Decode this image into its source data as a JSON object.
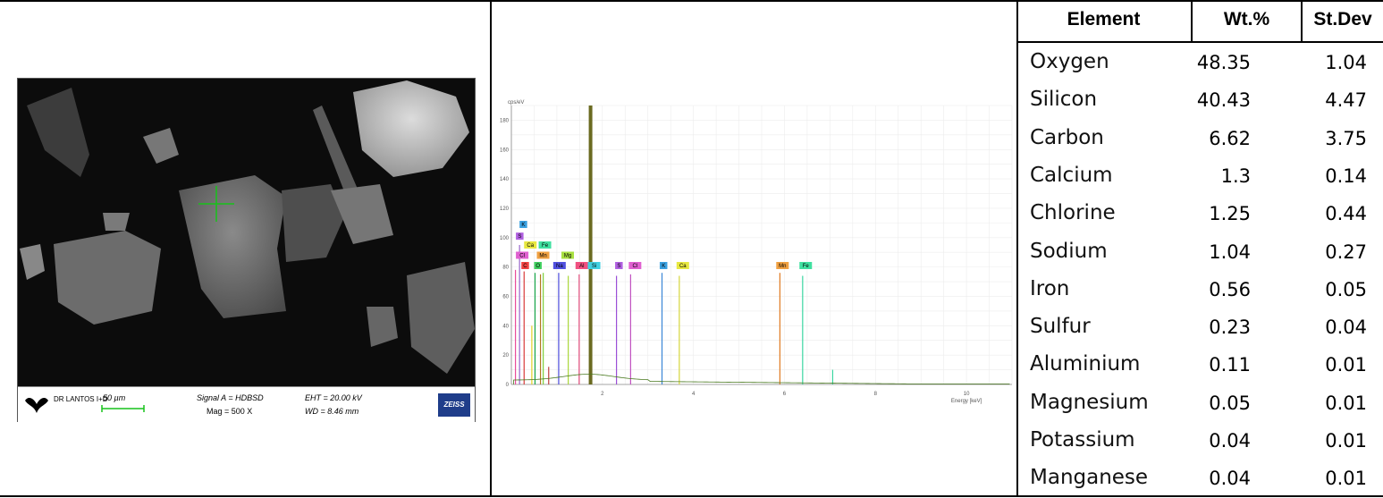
{
  "sem": {
    "logo": "DR LANTOS I+D",
    "scale": "50 µm",
    "signal": "Signal A = HDBSD",
    "mag": "Mag =   500 X",
    "eht": "EHT = 20.00 kV",
    "wd": "WD = 8.46 mm",
    "brand": "ZEISS"
  },
  "chart_data": {
    "type": "line",
    "ylabel": "cps/eV",
    "xlabel": "Energy [keV]",
    "xlim": [
      0,
      11
    ],
    "ylim": [
      0,
      190
    ],
    "yticks": [
      0,
      20,
      40,
      60,
      80,
      100,
      120,
      140,
      160,
      180
    ],
    "xticks": [
      2,
      4,
      6,
      8,
      10
    ],
    "grid": true,
    "peaks": [
      {
        "x": 0.09,
        "y": 78,
        "color": "#e94c9b"
      },
      {
        "x": 0.18,
        "y": 95,
        "color": "#9966cc"
      },
      {
        "x": 0.28,
        "y": 77,
        "color": "#d93a3a"
      },
      {
        "x": 0.45,
        "y": 40,
        "color": "#e0d020"
      },
      {
        "x": 0.52,
        "y": 76,
        "color": "#19a84b"
      },
      {
        "x": 0.64,
        "y": 75,
        "color": "#b07a1e"
      },
      {
        "x": 0.7,
        "y": 76,
        "color": "#7ccf3a"
      },
      {
        "x": 0.82,
        "y": 12,
        "color": "#c04040"
      },
      {
        "x": 1.04,
        "y": 76,
        "color": "#4a4adb"
      },
      {
        "x": 1.25,
        "y": 74,
        "color": "#a9d63a"
      },
      {
        "x": 1.49,
        "y": 75,
        "color": "#e04a7a"
      },
      {
        "x": 1.74,
        "y": 190,
        "color": "#6a6a20"
      },
      {
        "x": 2.31,
        "y": 74,
        "color": "#9b4fd6"
      },
      {
        "x": 2.62,
        "y": 75,
        "color": "#c050c0"
      },
      {
        "x": 3.31,
        "y": 76,
        "color": "#3a86d6"
      },
      {
        "x": 3.69,
        "y": 74,
        "color": "#d6d63a"
      },
      {
        "x": 5.9,
        "y": 76,
        "color": "#e07a20"
      },
      {
        "x": 6.4,
        "y": 74,
        "color": "#3ad6a0"
      },
      {
        "x": 7.06,
        "y": 10,
        "color": "#3ad6a0"
      }
    ],
    "labels": [
      {
        "text": "K",
        "x": 0.18,
        "y": 109,
        "color": "#3aa0e0"
      },
      {
        "text": "S",
        "x": 0.1,
        "y": 101,
        "color": "#b060e0"
      },
      {
        "text": "Ca",
        "x": 0.28,
        "y": 95,
        "color": "#e8e840"
      },
      {
        "text": "Fe",
        "x": 0.6,
        "y": 95,
        "color": "#40e0a0"
      },
      {
        "text": "Cl",
        "x": 0.1,
        "y": 88,
        "color": "#e060d0"
      },
      {
        "text": "Mn",
        "x": 0.56,
        "y": 88,
        "color": "#f0a040"
      },
      {
        "text": "Mg",
        "x": 1.1,
        "y": 88,
        "color": "#a8e040"
      },
      {
        "text": "C",
        "x": 0.22,
        "y": 81,
        "color": "#f04040"
      },
      {
        "text": "O",
        "x": 0.5,
        "y": 81,
        "color": "#40d060"
      },
      {
        "text": "Na",
        "x": 0.92,
        "y": 81,
        "color": "#5050e0"
      },
      {
        "text": "Al",
        "x": 1.41,
        "y": 81,
        "color": "#f05080"
      },
      {
        "text": "Si",
        "x": 1.68,
        "y": 81,
        "color": "#40d0e0"
      },
      {
        "text": "S",
        "x": 2.28,
        "y": 81,
        "color": "#b060e0"
      },
      {
        "text": "Cl",
        "x": 2.58,
        "y": 81,
        "color": "#e060d0"
      },
      {
        "text": "K",
        "x": 3.26,
        "y": 81,
        "color": "#3aa0e0"
      },
      {
        "text": "Ca",
        "x": 3.63,
        "y": 81,
        "color": "#e8e840"
      },
      {
        "text": "Mn",
        "x": 5.82,
        "y": 81,
        "color": "#f0a040"
      },
      {
        "text": "Fe",
        "x": 6.33,
        "y": 81,
        "color": "#40e0a0"
      }
    ]
  },
  "table": {
    "headers": [
      "Element",
      "Wt.%",
      "St.Dev"
    ],
    "rows": [
      {
        "element": "Oxygen",
        "wt": "48.35",
        "sd": "1.04"
      },
      {
        "element": "Silicon",
        "wt": "40.43",
        "sd": "4.47"
      },
      {
        "element": "Carbon",
        "wt": "6.62",
        "sd": "3.75"
      },
      {
        "element": "Calcium",
        "wt": "1.3",
        "sd": "0.14"
      },
      {
        "element": "Chlorine",
        "wt": "1.25",
        "sd": "0.44"
      },
      {
        "element": "Sodium",
        "wt": "1.04",
        "sd": "0.27"
      },
      {
        "element": "Iron",
        "wt": "0.56",
        "sd": "0.05"
      },
      {
        "element": "Sulfur",
        "wt": "0.23",
        "sd": "0.04"
      },
      {
        "element": "Aluminium",
        "wt": "0.11",
        "sd": "0.01"
      },
      {
        "element": "Magnesium",
        "wt": "0.05",
        "sd": "0.01"
      },
      {
        "element": "Potassium",
        "wt": "0.04",
        "sd": "0.01"
      },
      {
        "element": "Manganese",
        "wt": "0.04",
        "sd": "0.01"
      }
    ]
  }
}
